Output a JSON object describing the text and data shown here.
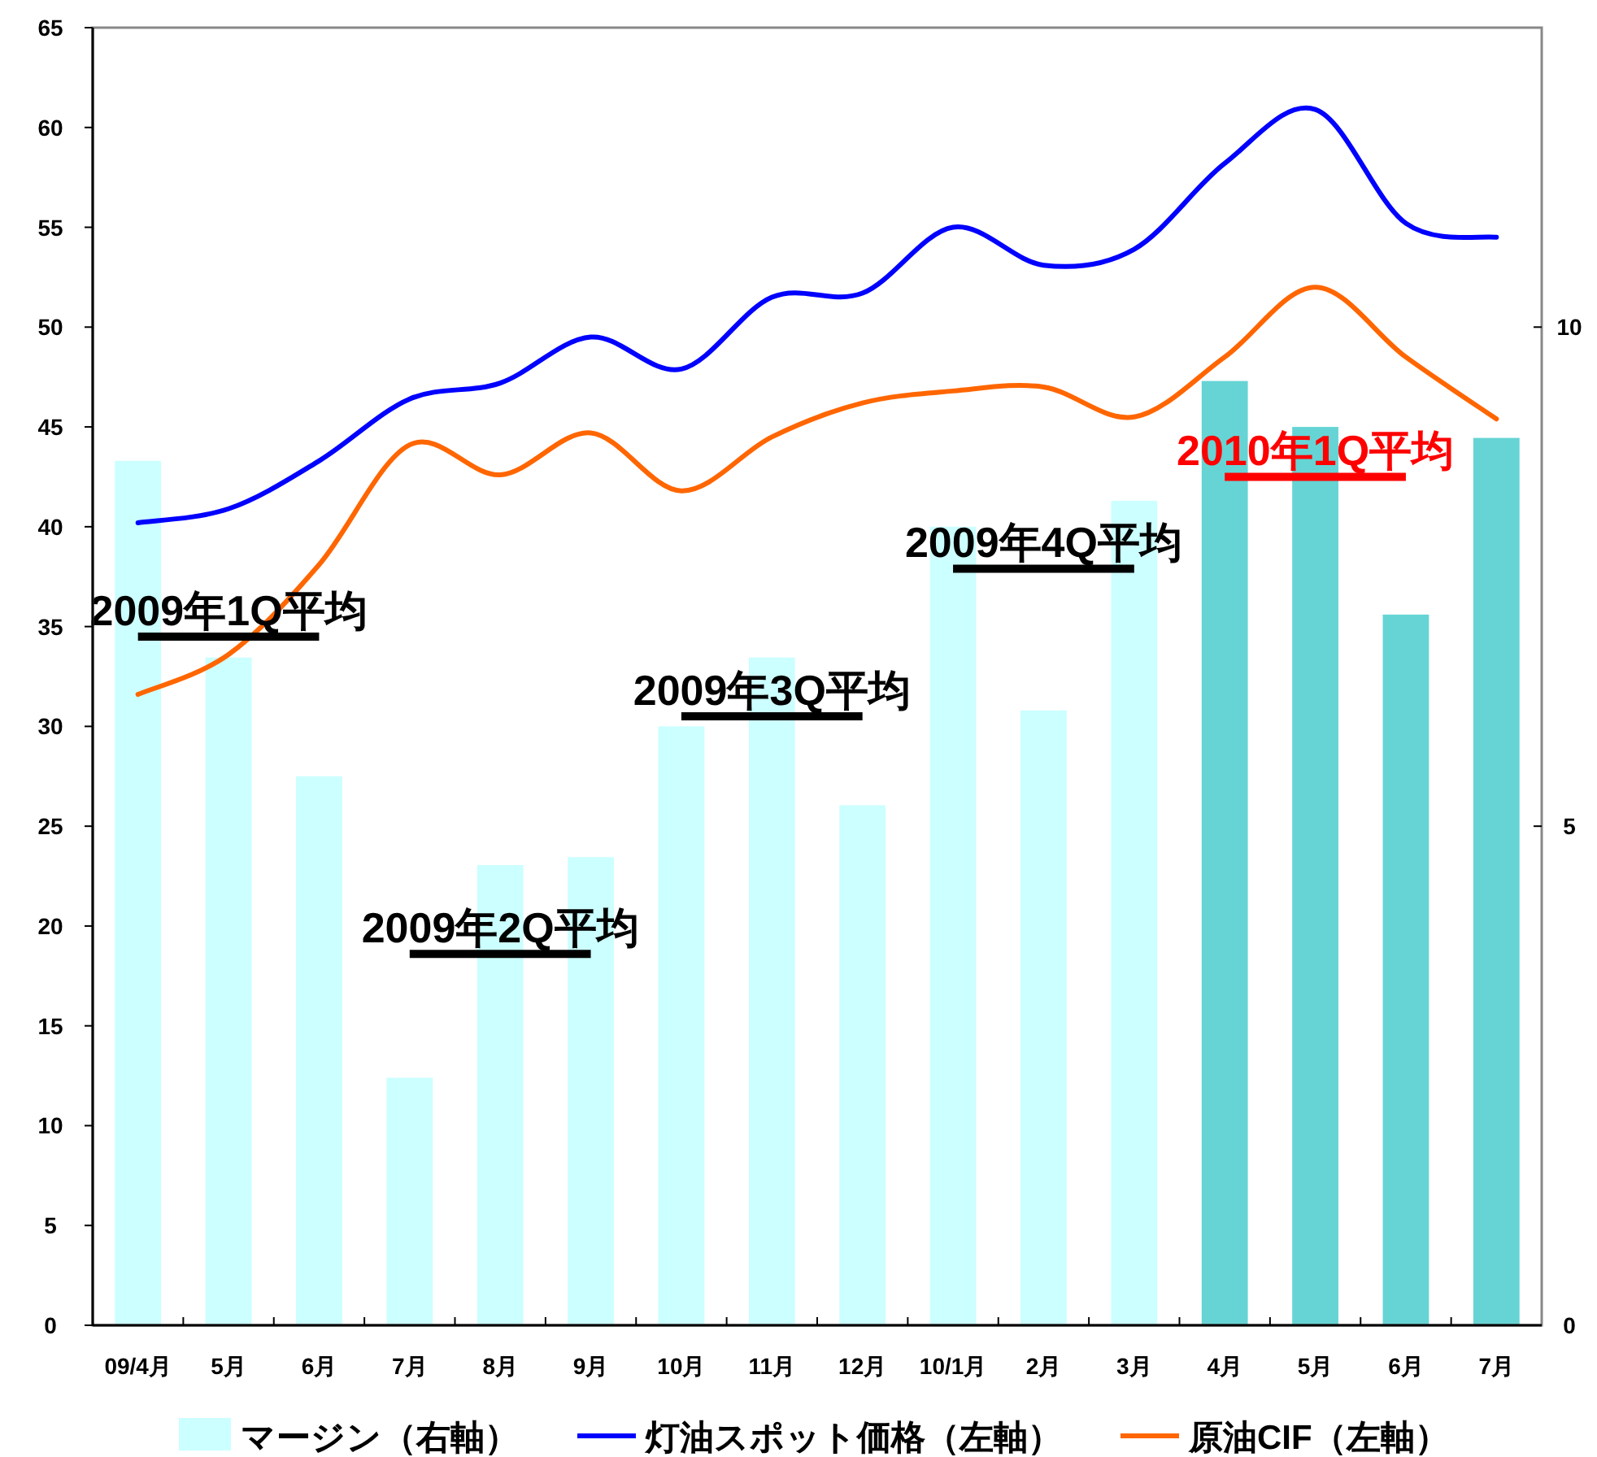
{
  "chart_data": {
    "type": "bar",
    "categories": [
      "09/4月",
      "5月",
      "6月",
      "7月",
      "8月",
      "9月",
      "10月",
      "11月",
      "12月",
      "10/1月",
      "2月",
      "3月",
      "4月",
      "5月",
      "6月",
      "7月"
    ],
    "series": [
      {
        "name": "マージン（右軸）",
        "axis": "y2",
        "color": "#ccffff",
        "colors": [
          "#ccffff",
          "#ccffff",
          "#ccffff",
          "#ccffff",
          "#ccffff",
          "#ccffff",
          "#ccffff",
          "#ccffff",
          "#ccffff",
          "#ccffff",
          "#ccffff",
          "#ccffff",
          "#66d4d4",
          "#66d4d4",
          "#66d4d4",
          "#66d4d4"
        ],
        "values": [
          8.66,
          6.69,
          5.5,
          2.48,
          4.61,
          4.69,
          6.0,
          6.69,
          5.21,
          8.0,
          6.16,
          8.26,
          9.46,
          9.0,
          7.12,
          8.89
        ]
      },
      {
        "name": "灯油スポット価格（左軸）",
        "type": "line",
        "color": "#0000ff",
        "values": [
          40.2,
          40.9,
          43.3,
          46.4,
          47.2,
          49.5,
          47.9,
          51.5,
          51.7,
          55.0,
          53.1,
          53.9,
          58.2,
          60.9,
          55.2,
          54.5
        ]
      },
      {
        "name": "原油CIF（左軸）",
        "type": "line",
        "color": "#ff6600",
        "values": [
          31.6,
          33.6,
          38.1,
          44.1,
          42.6,
          44.7,
          41.8,
          44.5,
          46.2,
          46.8,
          47.0,
          45.5,
          48.5,
          52.0,
          48.5,
          45.4
        ]
      },
      {
        "name": "2009年1Q平均",
        "type": "line",
        "axis": "y2",
        "color": "#000000",
        "values": [
          6.9,
          6.9,
          6.9,
          null,
          null,
          null,
          null,
          null,
          null,
          null,
          null,
          null,
          null,
          null,
          null,
          null
        ]
      },
      {
        "name": "2009年2Q平均",
        "type": "line",
        "axis": "y2",
        "color": "#000000",
        "values": [
          null,
          null,
          null,
          3.72,
          3.72,
          3.72,
          null,
          null,
          null,
          null,
          null,
          null,
          null,
          null,
          null,
          null
        ]
      },
      {
        "name": "2009年3Q平均",
        "type": "line",
        "axis": "y2",
        "color": "#000000",
        "values": [
          null,
          null,
          null,
          null,
          null,
          null,
          6.1,
          6.1,
          6.1,
          null,
          null,
          null,
          null,
          null,
          null,
          null
        ]
      },
      {
        "name": "2009年4Q平均",
        "type": "line",
        "axis": "y2",
        "color": "#000000",
        "values": [
          null,
          null,
          null,
          null,
          null,
          null,
          null,
          null,
          null,
          7.58,
          7.58,
          7.58,
          null,
          null,
          null,
          null
        ]
      },
      {
        "name": "2010年1Q平均",
        "type": "line",
        "axis": "y2",
        "color": "#ff0000",
        "values": [
          null,
          null,
          null,
          null,
          null,
          null,
          null,
          null,
          null,
          null,
          null,
          null,
          8.5,
          8.5,
          8.5,
          null
        ]
      }
    ],
    "ylim": [
      0,
      65
    ],
    "yticks": [
      0,
      5,
      10,
      15,
      20,
      25,
      30,
      35,
      40,
      45,
      50,
      55,
      60,
      65
    ],
    "y2lim": [
      0,
      13
    ],
    "y2ticks": [
      0,
      5,
      10
    ],
    "grid": false,
    "legend": "bottom"
  }
}
